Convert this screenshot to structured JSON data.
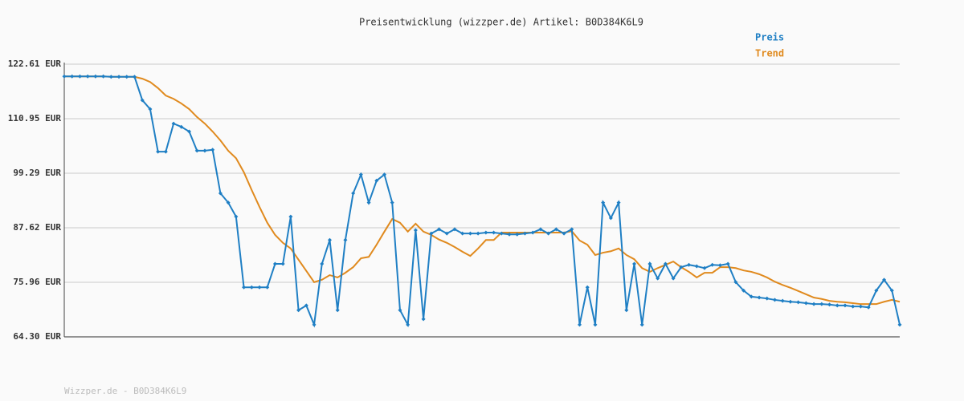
{
  "chart_data": {
    "type": "line",
    "title": "Preisentwicklung (wizzper.de) Artikel: B0D384K6L9",
    "footer": "Wizzper.de - B0D384K6L9",
    "ylim": [
      64.3,
      122.61
    ],
    "yticks": [
      {
        "value": 64.3,
        "label": "64.30 EUR"
      },
      {
        "value": 75.96,
        "label": "75.96 EUR"
      },
      {
        "value": 87.62,
        "label": "87.62 EUR"
      },
      {
        "value": 99.29,
        "label": "99.29 EUR"
      },
      {
        "value": 110.95,
        "label": "110.95 EUR"
      },
      {
        "value": 122.61,
        "label": "122.61 EUR"
      }
    ],
    "grid": true,
    "legend": "top-right",
    "series": [
      {
        "name": "Preis",
        "color": "#1f7fc4",
        "markers": true,
        "values": [
          120.0,
          120.0,
          120.0,
          120.0,
          120.0,
          120.0,
          119.9,
          119.9,
          119.9,
          119.9,
          114.9,
          113.0,
          103.9,
          103.9,
          109.9,
          109.2,
          108.2,
          104.1,
          104.1,
          104.3,
          95.0,
          93.0,
          90.0,
          74.9,
          74.9,
          74.9,
          74.9,
          79.9,
          79.9,
          90.0,
          70.0,
          71.0,
          66.9,
          79.9,
          85.0,
          70.0,
          85.0,
          95.0,
          99.0,
          93.0,
          97.7,
          99.0,
          93.0,
          70.0,
          66.9,
          87.1,
          68.1,
          86.4,
          87.3,
          86.4,
          87.3,
          86.4,
          86.4,
          86.4,
          86.6,
          86.6,
          86.4,
          86.2,
          86.2,
          86.4,
          86.6,
          87.3,
          86.4,
          87.3,
          86.4,
          87.3,
          66.9,
          74.9,
          66.9,
          93.0,
          89.7,
          93.0,
          70.0,
          79.9,
          66.9,
          79.9,
          76.8,
          79.9,
          76.8,
          79.2,
          79.7,
          79.4,
          79.0,
          79.7,
          79.6,
          79.9,
          76.0,
          74.2,
          72.9,
          72.7,
          72.5,
          72.2,
          72.0,
          71.8,
          71.7,
          71.5,
          71.3,
          71.3,
          71.2,
          71.0,
          71.0,
          70.8,
          70.8,
          70.6,
          74.2,
          76.5,
          74.2,
          66.9
        ]
      },
      {
        "name": "Trend",
        "color": "#e08a1e",
        "markers": false,
        "values": [
          120.0,
          120.0,
          120.0,
          120.0,
          120.0,
          120.0,
          119.9,
          119.9,
          119.9,
          119.9,
          119.5,
          118.8,
          117.5,
          115.9,
          115.2,
          114.2,
          113.0,
          111.3,
          109.9,
          108.2,
          106.3,
          104.1,
          102.5,
          99.5,
          95.7,
          92.1,
          88.7,
          86.1,
          84.4,
          83.2,
          80.8,
          78.4,
          76.0,
          76.5,
          77.5,
          77.0,
          78.0,
          79.2,
          81.1,
          81.4,
          84.0,
          86.8,
          89.5,
          88.7,
          86.8,
          88.5,
          86.8,
          86.1,
          85.1,
          84.4,
          83.5,
          82.5,
          81.6,
          83.2,
          85.0,
          85.0,
          86.6,
          86.6,
          86.6,
          86.6,
          86.6,
          86.6,
          86.6,
          86.6,
          86.6,
          86.9,
          84.9,
          84.0,
          81.8,
          82.3,
          82.6,
          83.2,
          81.8,
          80.9,
          79.0,
          78.2,
          79.0,
          79.7,
          80.4,
          79.2,
          78.2,
          77.0,
          78.0,
          78.0,
          79.2,
          79.2,
          79.0,
          78.5,
          78.2,
          77.7,
          77.0,
          76.1,
          75.4,
          74.8,
          74.1,
          73.4,
          72.7,
          72.4,
          72.0,
          71.8,
          71.7,
          71.5,
          71.3,
          71.3,
          71.3,
          71.8,
          72.2,
          71.8
        ]
      }
    ]
  }
}
